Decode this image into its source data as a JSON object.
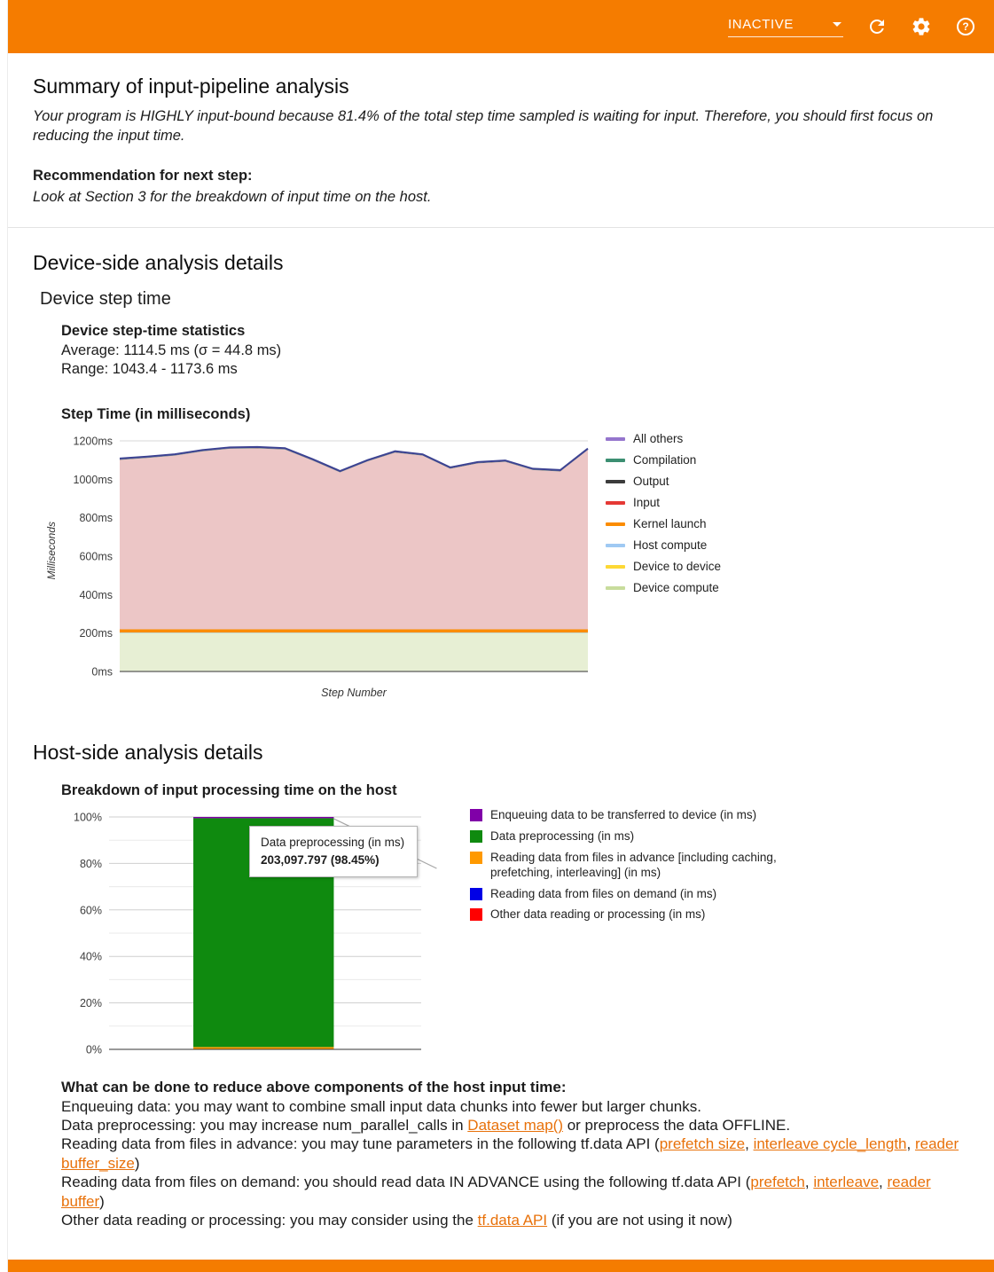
{
  "colors": {
    "header_bg": "#f57c00",
    "link": "#e8710a",
    "divider": "#e3e3e3"
  },
  "header": {
    "status": "INACTIVE"
  },
  "summary": {
    "title": "Summary of input-pipeline analysis",
    "body": "Your program is HIGHLY input-bound because 81.4% of the total step time sampled is waiting for input. Therefore, you should first focus on reducing the input time.",
    "recommendation_label": "Recommendation for next step:",
    "recommendation": "Look at Section 3 for the breakdown of input time on the host."
  },
  "device": {
    "section_title": "Device-side analysis details",
    "subsection_title": "Device step time",
    "stats_title": "Device step-time statistics",
    "average_line": "Average: 1114.5 ms (σ = 44.8 ms)",
    "range_line": "Range: 1043.4 - 1173.6 ms"
  },
  "host": {
    "section_title": "Host-side analysis details"
  },
  "advice": {
    "title": "What can be done to reduce above components of the host input time:",
    "lines": [
      [
        "Enqueuing data: you may want to combine small input data chunks into fewer but larger chunks."
      ],
      [
        "Data preprocessing: you may increase num_parallel_calls in ",
        {
          "link": "Dataset map()"
        },
        " or preprocess the data OFFLINE."
      ],
      [
        "Reading data from files in advance: you may tune parameters in the following tf.data API (",
        {
          "link": "prefetch size"
        },
        ", ",
        {
          "link": "interleave cycle_length"
        },
        ", ",
        {
          "link": "reader buffer_size"
        },
        ")"
      ],
      [
        "Reading data from files on demand: you should read data IN ADVANCE using the following tf.data API (",
        {
          "link": "prefetch"
        },
        ", ",
        {
          "link": "interleave"
        },
        ", ",
        {
          "link": "reader buffer"
        },
        ")"
      ],
      [
        "Other data reading or processing: you may consider using the ",
        {
          "link": "tf.data API"
        },
        " (if you are not using it now)"
      ]
    ]
  },
  "chart_data": [
    {
      "id": "device-step-time",
      "type": "area",
      "title": "Step Time (in milliseconds)",
      "xlabel": "Step Number",
      "ylabel": "Milliseconds",
      "ylim": [
        0,
        1200
      ],
      "y_ticks": [
        0,
        200,
        400,
        600,
        800,
        1000,
        1200
      ],
      "y_tick_suffix": "ms",
      "grid": true,
      "legend_position": "right",
      "total_step_time_ms": [
        1108,
        1118,
        1130,
        1152,
        1166,
        1168,
        1162,
        1105,
        1043,
        1100,
        1146,
        1130,
        1062,
        1090,
        1098,
        1055,
        1048,
        1160
      ],
      "total_stroke": "#3c4292",
      "series": [
        {
          "name": "Device compute",
          "fill": "#e7efd4",
          "values": [
            200,
            200,
            200,
            200,
            200,
            200,
            200,
            200,
            200,
            200,
            200,
            200,
            200,
            200,
            200,
            200,
            200,
            200
          ]
        },
        {
          "name": "Device to device",
          "fill": "#fdd835",
          "values": [
            1,
            1,
            1,
            1,
            1,
            1,
            1,
            1,
            1,
            1,
            1,
            1,
            1,
            1,
            1,
            1,
            1,
            1
          ]
        },
        {
          "name": "Host compute",
          "fill": "#9fc9f3",
          "values": [
            2,
            2,
            2,
            2,
            2,
            2,
            2,
            2,
            2,
            2,
            2,
            2,
            2,
            2,
            2,
            2,
            2,
            2
          ]
        },
        {
          "name": "Kernel launch",
          "fill": "#fb8c00",
          "values": [
            16,
            16,
            16,
            16,
            16,
            16,
            16,
            16,
            16,
            16,
            16,
            16,
            16,
            16,
            16,
            16,
            16,
            16
          ]
        },
        {
          "name": "Input",
          "fill": "#ecc6c6",
          "values": [
            882,
            892,
            904,
            926,
            940,
            942,
            936,
            879,
            817,
            874,
            920,
            904,
            836,
            864,
            872,
            829,
            822,
            934
          ]
        },
        {
          "name": "Output",
          "fill": "#6d6d6d",
          "values": [
            2,
            2,
            2,
            2,
            2,
            2,
            2,
            2,
            2,
            2,
            2,
            2,
            2,
            2,
            2,
            2,
            2,
            2
          ]
        },
        {
          "name": "Compilation",
          "fill": "#3c8f72",
          "values": [
            1,
            1,
            1,
            1,
            1,
            1,
            1,
            1,
            1,
            1,
            1,
            1,
            1,
            1,
            1,
            1,
            1,
            1
          ]
        },
        {
          "name": "All others",
          "fill": "#9575cd",
          "values": [
            4,
            4,
            4,
            4,
            4,
            4,
            4,
            4,
            4,
            4,
            4,
            4,
            4,
            4,
            4,
            4,
            4,
            4
          ]
        }
      ],
      "legend": [
        {
          "label": "All others",
          "color": "#9575cd"
        },
        {
          "label": "Compilation",
          "color": "#3c8f72"
        },
        {
          "label": "Output",
          "color": "#3c3c3c"
        },
        {
          "label": "Input",
          "color": "#e53935"
        },
        {
          "label": "Kernel launch",
          "color": "#fb8c00"
        },
        {
          "label": "Host compute",
          "color": "#9fc9f3"
        },
        {
          "label": "Device to device",
          "color": "#fdd835"
        },
        {
          "label": "Device compute",
          "color": "#c8dc9c"
        }
      ]
    },
    {
      "id": "host-input-breakdown",
      "type": "bar",
      "title": "Breakdown of input processing time on the host",
      "ylim": [
        0,
        100
      ],
      "y_ticks": [
        0,
        20,
        40,
        60,
        80,
        100
      ],
      "y_tick_suffix": "%",
      "grid": true,
      "legend_position": "right",
      "bar_segments": [
        {
          "name": "Reading data from files in advance (in ms)",
          "pct": 1.0,
          "color": "#ff9900"
        },
        {
          "name": "Data preprocessing (in ms)",
          "pct": 98.45,
          "color": "#0f8a0f"
        },
        {
          "name": "Enqueuing data to be transferred to device (in ms)",
          "pct": 0.55,
          "color": "#8000a8"
        }
      ],
      "tooltip": {
        "title": "Data preprocessing (in ms)",
        "value": "203,097.797 (98.45%)"
      },
      "legend": [
        {
          "label": "Enqueuing data to be transferred to device (in ms)",
          "color": "#8000a8"
        },
        {
          "label": "Data preprocessing (in ms)",
          "color": "#0f8a0f"
        },
        {
          "label": "Reading data from files in advance [including caching, prefetching, interleaving] (in ms)",
          "color": "#ff9900"
        },
        {
          "label": "Reading data from files on demand (in ms)",
          "color": "#0000e6"
        },
        {
          "label": "Other data reading or processing (in ms)",
          "color": "#ff0000"
        }
      ]
    }
  ]
}
